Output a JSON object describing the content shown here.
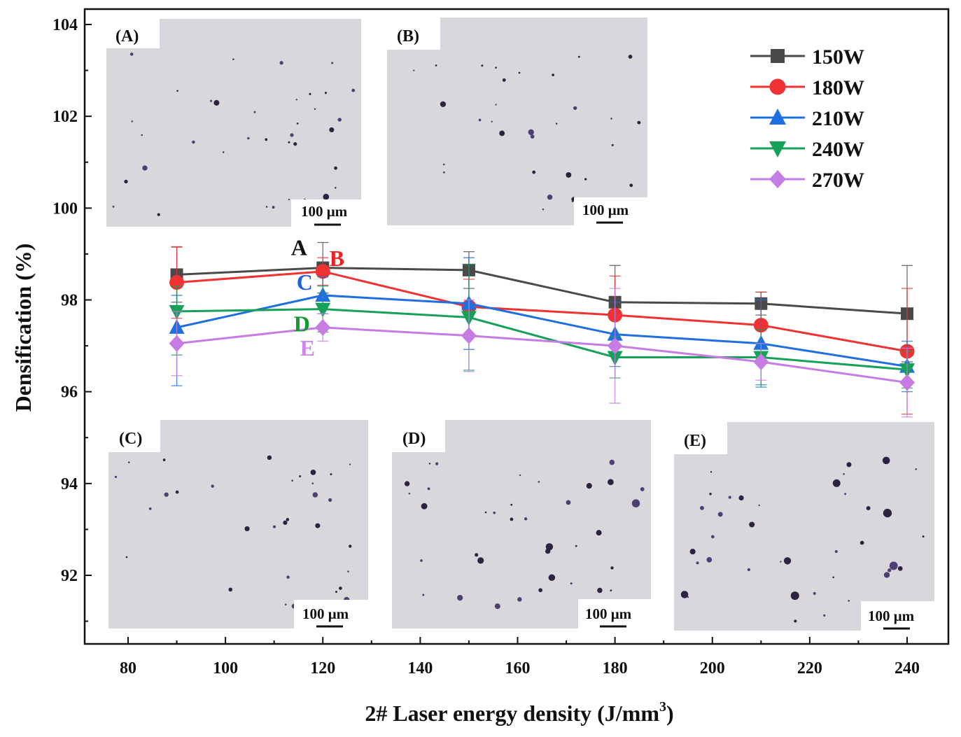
{
  "chart_data": {
    "type": "line",
    "title": "",
    "xlabel": "2# Laser energy density (J/mm",
    "xlabel_superscript": "3",
    "xlabel_close": ")",
    "ylabel": "Densification (%)",
    "xlim": [
      75,
      245
    ],
    "ylim": [
      90.8,
      104.4
    ],
    "xticks": [
      80,
      100,
      120,
      140,
      160,
      180,
      200,
      220,
      240
    ],
    "xtick_labels": [
      "80",
      "100",
      "120",
      "140",
      "160",
      "180",
      "200",
      "220",
      "240"
    ],
    "yticks": [
      92,
      94,
      96,
      98,
      100,
      102,
      104
    ],
    "ytick_labels": [
      "92",
      "94",
      "96",
      "98",
      "100",
      "102",
      "104"
    ],
    "x": [
      90,
      120,
      150,
      180,
      210,
      240
    ],
    "legend_position": "top-right",
    "series": [
      {
        "name": "150W",
        "color": "#4a4a4a",
        "marker": "square",
        "values": [
          98.55,
          98.7,
          98.65,
          97.95,
          97.92,
          97.7
        ],
        "err_upper": [
          0.6,
          0.55,
          0.4,
          0.8,
          0.25,
          1.05
        ],
        "err_lower": [
          0.6,
          0.55,
          0.4,
          0.8,
          0.25,
          1.05
        ]
      },
      {
        "name": "180W",
        "color": "#f03232",
        "marker": "circle",
        "values": [
          98.38,
          98.62,
          97.85,
          97.67,
          97.45,
          96.88
        ],
        "err_upper": [
          0.78,
          0.3,
          0.6,
          0.85,
          0.72,
          1.37
        ],
        "err_lower": [
          0.78,
          0.3,
          0.6,
          0.85,
          0.72,
          1.37
        ]
      },
      {
        "name": "210W",
        "color": "#1f6fe0",
        "marker": "triangle-up",
        "values": [
          97.4,
          98.1,
          97.92,
          97.25,
          97.05,
          96.55
        ],
        "err_upper": [
          0.7,
          0.4,
          1.0,
          0.7,
          0.95,
          0.55
        ],
        "err_lower": [
          1.27,
          0.4,
          1.0,
          0.7,
          0.95,
          0.55
        ]
      },
      {
        "name": "240W",
        "color": "#17a05a",
        "marker": "triangle-down",
        "values": [
          97.75,
          97.8,
          97.62,
          96.75,
          96.75,
          96.48
        ],
        "err_upper": [
          0.55,
          0.5,
          1.15,
          0.45,
          0.6,
          0.4
        ],
        "err_lower": [
          0.95,
          0.5,
          1.15,
          0.45,
          0.6,
          0.4
        ]
      },
      {
        "name": "270W",
        "color": "#c77ce3",
        "marker": "diamond",
        "values": [
          97.05,
          97.4,
          97.22,
          97.0,
          96.65,
          96.2
        ],
        "err_upper": [
          0.7,
          0.3,
          0.78,
          1.25,
          0.4,
          0.75
        ],
        "err_lower": [
          0.7,
          0.3,
          0.78,
          1.25,
          0.4,
          0.75
        ]
      }
    ],
    "point_annotations": [
      {
        "text": "A",
        "color": "#111111",
        "series": "150W",
        "x": 120
      },
      {
        "text": "B",
        "color": "#f02020",
        "series": "180W",
        "x": 120
      },
      {
        "text": "C",
        "color": "#1f5fe0",
        "series": "210W",
        "x": 120
      },
      {
        "text": "D",
        "color": "#139a2f",
        "series": "240W",
        "x": 120
      },
      {
        "text": "E",
        "color": "#cf86ec",
        "series": "270W",
        "x": 120
      }
    ],
    "micrograph_insets": [
      {
        "label": "(A)",
        "scale_bar": "100 μm"
      },
      {
        "label": "(B)",
        "scale_bar": "100 μm"
      },
      {
        "label": "(C)",
        "scale_bar": "100 μm"
      },
      {
        "label": "(D)",
        "scale_bar": "100 μm"
      },
      {
        "label": "(E)",
        "scale_bar": "100 μm"
      }
    ]
  }
}
